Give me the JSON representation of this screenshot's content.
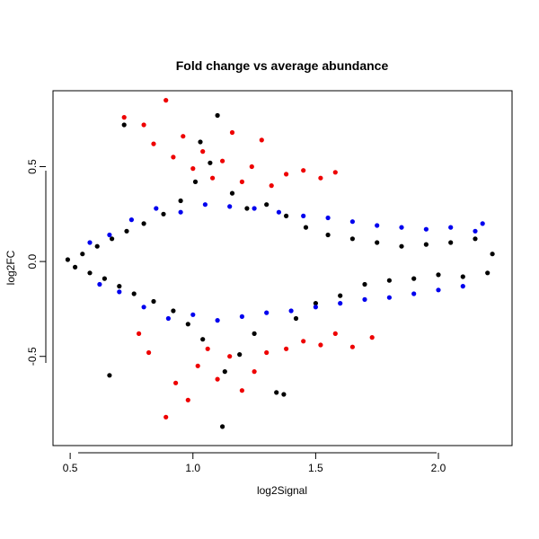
{
  "chart_data": {
    "type": "scatter",
    "title": "Fold change vs average abundance",
    "xlabel": "log2Signal",
    "ylabel": "log2FC",
    "xlim": [
      0.43,
      2.3
    ],
    "ylim": [
      -0.97,
      0.9
    ],
    "x_ticks": [
      0.5,
      1.0,
      1.5,
      2.0
    ],
    "x_tick_labels": [
      "0.5",
      "1.0",
      "1.5",
      "2.0"
    ],
    "y_ticks": [
      -0.5,
      0.0,
      0.5
    ],
    "y_tick_labels": [
      "-0.5",
      "0.0",
      "0.5"
    ],
    "grid": false,
    "legend": "none",
    "series": [
      {
        "color": "#000000",
        "points": [
          [
            0.49,
            0.01
          ],
          [
            0.52,
            -0.03
          ],
          [
            0.55,
            0.04
          ],
          [
            0.58,
            -0.06
          ],
          [
            0.61,
            0.08
          ],
          [
            0.64,
            -0.09
          ],
          [
            0.67,
            0.12
          ],
          [
            0.7,
            -0.13
          ],
          [
            0.73,
            0.16
          ],
          [
            0.76,
            -0.17
          ],
          [
            0.8,
            0.2
          ],
          [
            0.84,
            -0.21
          ],
          [
            0.88,
            0.25
          ],
          [
            0.92,
            -0.26
          ],
          [
            0.95,
            0.32
          ],
          [
            0.98,
            -0.33
          ],
          [
            1.01,
            0.42
          ],
          [
            1.04,
            -0.41
          ],
          [
            1.07,
            0.52
          ],
          [
            1.1,
            0.77
          ],
          [
            1.13,
            -0.58
          ],
          [
            1.16,
            0.36
          ],
          [
            1.19,
            -0.49
          ],
          [
            1.22,
            0.28
          ],
          [
            1.25,
            -0.38
          ],
          [
            1.3,
            0.3
          ],
          [
            1.34,
            -0.69
          ],
          [
            1.38,
            0.24
          ],
          [
            1.42,
            -0.3
          ],
          [
            1.46,
            0.18
          ],
          [
            1.5,
            -0.22
          ],
          [
            1.55,
            0.14
          ],
          [
            1.6,
            -0.18
          ],
          [
            1.65,
            0.12
          ],
          [
            1.7,
            -0.12
          ],
          [
            1.75,
            0.1
          ],
          [
            1.8,
            -0.1
          ],
          [
            1.85,
            0.08
          ],
          [
            1.9,
            -0.09
          ],
          [
            1.95,
            0.09
          ],
          [
            2.0,
            -0.07
          ],
          [
            2.05,
            0.1
          ],
          [
            2.1,
            -0.08
          ],
          [
            2.15,
            0.12
          ],
          [
            2.2,
            -0.06
          ],
          [
            2.22,
            0.04
          ],
          [
            0.66,
            -0.6
          ],
          [
            0.72,
            0.72
          ],
          [
            1.03,
            0.63
          ],
          [
            1.12,
            -0.87
          ],
          [
            1.37,
            -0.7
          ]
        ]
      },
      {
        "color": "#0000ee",
        "points": [
          [
            0.58,
            0.1
          ],
          [
            0.62,
            -0.12
          ],
          [
            0.66,
            0.14
          ],
          [
            0.7,
            -0.16
          ],
          [
            0.75,
            0.22
          ],
          [
            0.8,
            -0.24
          ],
          [
            0.85,
            0.28
          ],
          [
            0.9,
            -0.3
          ],
          [
            0.95,
            0.26
          ],
          [
            1.0,
            -0.28
          ],
          [
            1.05,
            0.3
          ],
          [
            1.1,
            -0.31
          ],
          [
            1.15,
            0.29
          ],
          [
            1.2,
            -0.29
          ],
          [
            1.25,
            0.28
          ],
          [
            1.3,
            -0.27
          ],
          [
            1.35,
            0.26
          ],
          [
            1.4,
            -0.26
          ],
          [
            1.45,
            0.24
          ],
          [
            1.5,
            -0.24
          ],
          [
            1.55,
            0.23
          ],
          [
            1.6,
            -0.22
          ],
          [
            1.65,
            0.21
          ],
          [
            1.7,
            -0.2
          ],
          [
            1.75,
            0.19
          ],
          [
            1.8,
            -0.19
          ],
          [
            1.85,
            0.18
          ],
          [
            1.9,
            -0.17
          ],
          [
            1.95,
            0.17
          ],
          [
            2.0,
            -0.15
          ],
          [
            2.05,
            0.18
          ],
          [
            2.1,
            -0.13
          ],
          [
            2.15,
            0.16
          ],
          [
            2.18,
            0.2
          ]
        ]
      },
      {
        "color": "#ee0000",
        "points": [
          [
            0.72,
            0.76
          ],
          [
            0.8,
            0.72
          ],
          [
            0.84,
            0.62
          ],
          [
            0.89,
            0.85
          ],
          [
            0.92,
            0.55
          ],
          [
            0.96,
            0.66
          ],
          [
            1.0,
            0.49
          ],
          [
            1.04,
            0.58
          ],
          [
            1.08,
            0.44
          ],
          [
            1.12,
            0.53
          ],
          [
            1.16,
            0.68
          ],
          [
            1.2,
            0.42
          ],
          [
            1.24,
            0.5
          ],
          [
            1.28,
            0.64
          ],
          [
            1.32,
            0.4
          ],
          [
            1.38,
            0.46
          ],
          [
            1.45,
            0.48
          ],
          [
            1.52,
            0.44
          ],
          [
            1.58,
            0.47
          ],
          [
            0.78,
            -0.38
          ],
          [
            0.82,
            -0.48
          ],
          [
            0.89,
            -0.82
          ],
          [
            0.93,
            -0.64
          ],
          [
            0.98,
            -0.73
          ],
          [
            1.02,
            -0.55
          ],
          [
            1.06,
            -0.46
          ],
          [
            1.1,
            -0.62
          ],
          [
            1.15,
            -0.5
          ],
          [
            1.2,
            -0.68
          ],
          [
            1.25,
            -0.58
          ],
          [
            1.3,
            -0.48
          ],
          [
            1.38,
            -0.46
          ],
          [
            1.45,
            -0.42
          ],
          [
            1.52,
            -0.44
          ],
          [
            1.58,
            -0.38
          ],
          [
            1.65,
            -0.45
          ],
          [
            1.73,
            -0.4
          ]
        ]
      }
    ]
  }
}
